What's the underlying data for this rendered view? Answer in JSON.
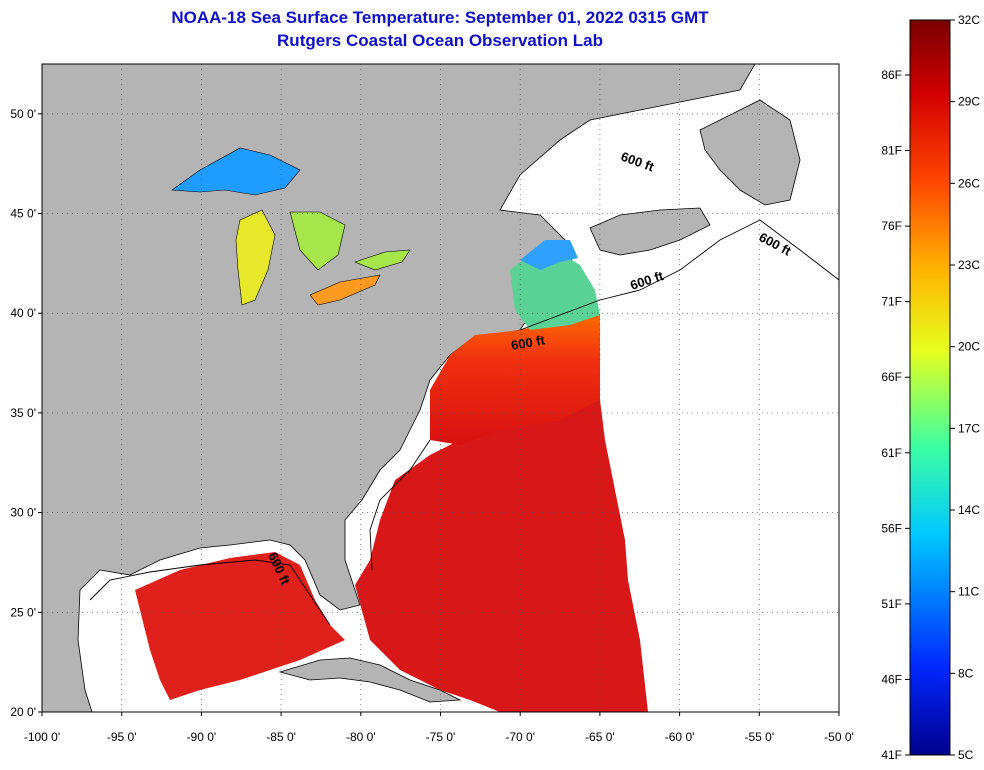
{
  "title": "NOAA-18 Sea Surface Temperature:  September 01, 2022 0315 GMT",
  "subtitle": "Rutgers Coastal Ocean Observation Lab",
  "map": {
    "lat_range": [
      20,
      52.5
    ],
    "lon_range": [
      -100,
      -50
    ],
    "lat_ticks": [
      {
        "value": 20,
        "label": "20 0'"
      },
      {
        "value": 25,
        "label": "25 0'"
      },
      {
        "value": 30,
        "label": "30 0'"
      },
      {
        "value": 35,
        "label": "35 0'"
      },
      {
        "value": 40,
        "label": "40 0'"
      },
      {
        "value": 45,
        "label": "45 0'"
      },
      {
        "value": 50,
        "label": "50 0'"
      }
    ],
    "lon_ticks": [
      {
        "value": -100,
        "label": "-100 0'"
      },
      {
        "value": -95,
        "label": "-95 0'"
      },
      {
        "value": -90,
        "label": "-90 0'"
      },
      {
        "value": -85,
        "label": "-85 0'"
      },
      {
        "value": -80,
        "label": "-80 0'"
      },
      {
        "value": -75,
        "label": "-75 0'"
      },
      {
        "value": -70,
        "label": "-70 0'"
      },
      {
        "value": -65,
        "label": "-65 0'"
      },
      {
        "value": -60,
        "label": "-60 0'"
      },
      {
        "value": -55,
        "label": "-55 0'"
      },
      {
        "value": -50,
        "label": "-50 0'"
      }
    ],
    "contour_label": "600 ft",
    "land_color": "#b4b4b4",
    "grid": "dotted"
  },
  "colorbar": {
    "celsius_labels": [
      "32C",
      "29C",
      "26C",
      "23C",
      "20C",
      "17C",
      "14C",
      "11C",
      "8C",
      "5C"
    ],
    "fahrenheit_labels": [
      "86F",
      "81F",
      "76F",
      "71F",
      "66F",
      "61F",
      "56F",
      "51F",
      "46F",
      "41F"
    ],
    "colors": [
      "#7a0000",
      "#c80000",
      "#ff3000",
      "#ff8c00",
      "#ffe000",
      "#b4ff3c",
      "#3cffc8",
      "#00b4ff",
      "#0050ff",
      "#00008c"
    ]
  }
}
